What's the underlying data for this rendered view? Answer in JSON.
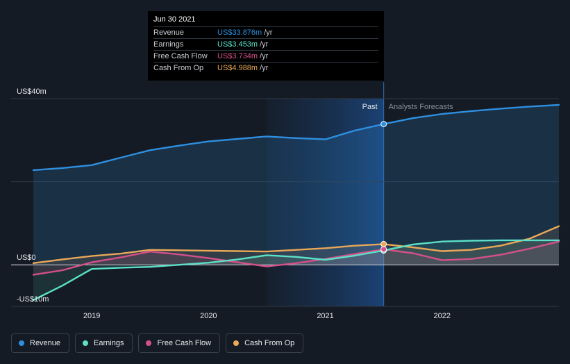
{
  "chart_data": {
    "type": "line",
    "title": "",
    "currency_unit": "US$",
    "y_axis_labels": [
      {
        "value": 40,
        "label": "US$40m"
      },
      {
        "value": 0,
        "label": "US$0"
      },
      {
        "value": -10,
        "label": "-US$10m"
      }
    ],
    "ylim": [
      -10,
      40
    ],
    "xlim": [
      2018.5,
      2023.0
    ],
    "x_ticks": [
      {
        "value": 2019,
        "label": "2019"
      },
      {
        "value": 2020,
        "label": "2020"
      },
      {
        "value": 2021,
        "label": "2021"
      },
      {
        "value": 2022,
        "label": "2022"
      }
    ],
    "past_label": "Past",
    "forecast_label": "Analysts Forecasts",
    "past_end": 2021.5,
    "highlight_start": 2020.5,
    "series": [
      {
        "name": "Revenue",
        "key": "revenue",
        "color": "#2e8fe0",
        "points": [
          [
            2018.5,
            22.8
          ],
          [
            2018.75,
            23.3
          ],
          [
            2019.0,
            24.0
          ],
          [
            2019.25,
            25.8
          ],
          [
            2019.5,
            27.6
          ],
          [
            2019.75,
            28.7
          ],
          [
            2020.0,
            29.7
          ],
          [
            2020.25,
            30.3
          ],
          [
            2020.5,
            30.9
          ],
          [
            2020.75,
            30.5
          ],
          [
            2021.0,
            30.2
          ],
          [
            2021.25,
            32.3
          ],
          [
            2021.5,
            33.876
          ],
          [
            2021.75,
            35.3
          ],
          [
            2022.0,
            36.3
          ],
          [
            2022.25,
            37.0
          ],
          [
            2022.5,
            37.6
          ],
          [
            2022.75,
            38.1
          ],
          [
            2023.0,
            38.5
          ]
        ]
      },
      {
        "name": "Earnings",
        "key": "earnings",
        "color": "#5ce0c8",
        "points": [
          [
            2018.5,
            -8.5
          ],
          [
            2018.75,
            -5.0
          ],
          [
            2019.0,
            -1.0
          ],
          [
            2019.25,
            -0.7
          ],
          [
            2019.5,
            -0.5
          ],
          [
            2019.75,
            0.0
          ],
          [
            2020.0,
            0.5
          ],
          [
            2020.25,
            1.3
          ],
          [
            2020.5,
            2.3
          ],
          [
            2020.75,
            1.9
          ],
          [
            2021.0,
            1.2
          ],
          [
            2021.25,
            2.2
          ],
          [
            2021.5,
            3.453
          ],
          [
            2021.75,
            4.9
          ],
          [
            2022.0,
            5.6
          ],
          [
            2022.25,
            5.8
          ],
          [
            2022.5,
            5.9
          ],
          [
            2022.75,
            5.9
          ],
          [
            2023.0,
            5.9
          ]
        ]
      },
      {
        "name": "Free Cash Flow",
        "key": "fcf",
        "color": "#d4508a",
        "points": [
          [
            2018.5,
            -2.4
          ],
          [
            2018.75,
            -1.3
          ],
          [
            2019.0,
            0.6
          ],
          [
            2019.25,
            1.8
          ],
          [
            2019.5,
            3.2
          ],
          [
            2019.75,
            2.5
          ],
          [
            2020.0,
            1.6
          ],
          [
            2020.25,
            0.6
          ],
          [
            2020.5,
            -0.4
          ],
          [
            2020.75,
            0.4
          ],
          [
            2021.0,
            1.4
          ],
          [
            2021.25,
            2.6
          ],
          [
            2021.5,
            3.734
          ],
          [
            2021.75,
            2.8
          ],
          [
            2022.0,
            1.1
          ],
          [
            2022.25,
            1.4
          ],
          [
            2022.5,
            2.4
          ],
          [
            2022.75,
            3.9
          ],
          [
            2023.0,
            5.6
          ]
        ]
      },
      {
        "name": "Cash From Op",
        "key": "cfo",
        "color": "#eaa858",
        "points": [
          [
            2018.5,
            0.4
          ],
          [
            2018.75,
            1.3
          ],
          [
            2019.0,
            2.1
          ],
          [
            2019.25,
            2.7
          ],
          [
            2019.5,
            3.6
          ],
          [
            2019.75,
            3.5
          ],
          [
            2020.0,
            3.4
          ],
          [
            2020.25,
            3.3
          ],
          [
            2020.5,
            3.2
          ],
          [
            2020.75,
            3.6
          ],
          [
            2021.0,
            4.0
          ],
          [
            2021.25,
            4.6
          ],
          [
            2021.5,
            4.988
          ],
          [
            2021.75,
            4.2
          ],
          [
            2022.0,
            3.3
          ],
          [
            2022.25,
            3.6
          ],
          [
            2022.5,
            4.6
          ],
          [
            2022.75,
            6.3
          ],
          [
            2023.0,
            9.3
          ]
        ]
      }
    ]
  },
  "tooltip": {
    "date": "Jun 30 2021",
    "unit": "/yr",
    "rows": [
      {
        "label": "Revenue",
        "value": "US$33.876m",
        "color": "#2e8fe0"
      },
      {
        "label": "Earnings",
        "value": "US$3.453m",
        "color": "#5ce0c8"
      },
      {
        "label": "Free Cash Flow",
        "value": "US$3.734m",
        "color": "#d4508a"
      },
      {
        "label": "Cash From Op",
        "value": "US$4.988m",
        "color": "#eaa858"
      }
    ]
  },
  "legend": [
    {
      "label": "Revenue",
      "color": "#2e8fe0"
    },
    {
      "label": "Earnings",
      "color": "#5ce0c8"
    },
    {
      "label": "Free Cash Flow",
      "color": "#d4508a"
    },
    {
      "label": "Cash From Op",
      "color": "#eaa858"
    }
  ]
}
